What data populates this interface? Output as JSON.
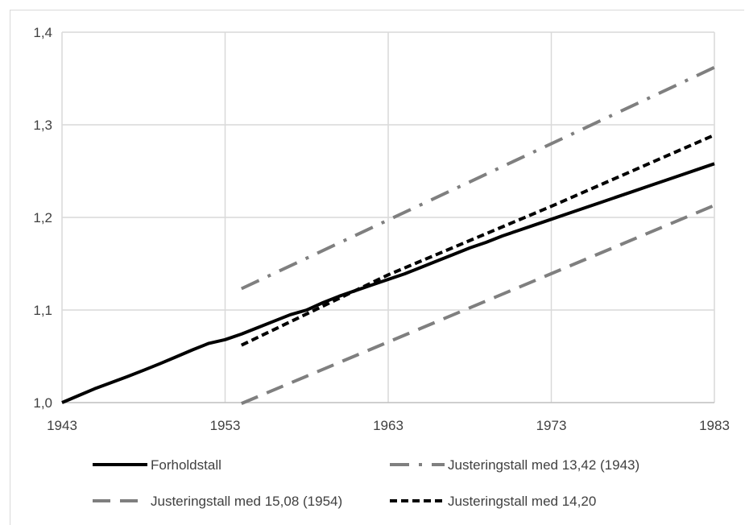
{
  "chart_data": {
    "type": "line",
    "title": "",
    "xlabel": "",
    "ylabel": "",
    "xlim": [
      1943,
      1983
    ],
    "ylim": [
      1.0,
      1.4
    ],
    "x_ticks": [
      1943,
      1953,
      1963,
      1973,
      1983
    ],
    "y_ticks": [
      1.0,
      1.1,
      1.2,
      1.3,
      1.4
    ],
    "x_tick_labels": [
      "1943",
      "1953",
      "1963",
      "1973",
      "1983"
    ],
    "y_tick_labels": [
      "1,0",
      "1,1",
      "1,2",
      "1,3",
      "1,4"
    ],
    "grid": true,
    "legend_position": "bottom",
    "series": [
      {
        "name": "Forholdstall",
        "style": "solid",
        "color": "#000000",
        "x": [
          1943,
          1944,
          1945,
          1946,
          1947,
          1948,
          1949,
          1950,
          1951,
          1952,
          1953,
          1954,
          1955,
          1956,
          1957,
          1958,
          1959,
          1960,
          1961,
          1962,
          1963,
          1964,
          1965,
          1966,
          1967,
          1968,
          1969,
          1970,
          1971,
          1972,
          1973,
          1974,
          1975,
          1976,
          1977,
          1978,
          1979,
          1980,
          1981,
          1982,
          1983
        ],
        "y": [
          1.0,
          1.0075,
          1.015,
          1.0215,
          1.028,
          1.035,
          1.042,
          1.0495,
          1.057,
          1.064,
          1.068,
          1.074,
          1.081,
          1.088,
          1.095,
          1.1,
          1.108,
          1.115,
          1.121,
          1.127,
          1.133,
          1.139,
          1.146,
          1.153,
          1.16,
          1.167,
          1.173,
          1.18,
          1.186,
          1.192,
          1.198,
          1.204,
          1.21,
          1.216,
          1.222,
          1.228,
          1.234,
          1.24,
          1.246,
          1.252,
          1.258
        ]
      },
      {
        "name": "Justeringstall med 13,42 (1943)",
        "style": "dashdot",
        "color": "#7f7f7f",
        "x": [
          1954,
          1983
        ],
        "y": [
          1.123,
          1.362
        ]
      },
      {
        "name": "Justeringstall med 15,08 (1954)",
        "style": "dashed",
        "color": "#7f7f7f",
        "x": [
          1954,
          1983
        ],
        "y": [
          0.999,
          1.213
        ]
      },
      {
        "name": "Justeringstall med 14,20",
        "style": "dotted",
        "color": "#000000",
        "x": [
          1954,
          1963,
          1973,
          1983
        ],
        "y": [
          1.062,
          1.138,
          1.212,
          1.289
        ]
      }
    ]
  }
}
